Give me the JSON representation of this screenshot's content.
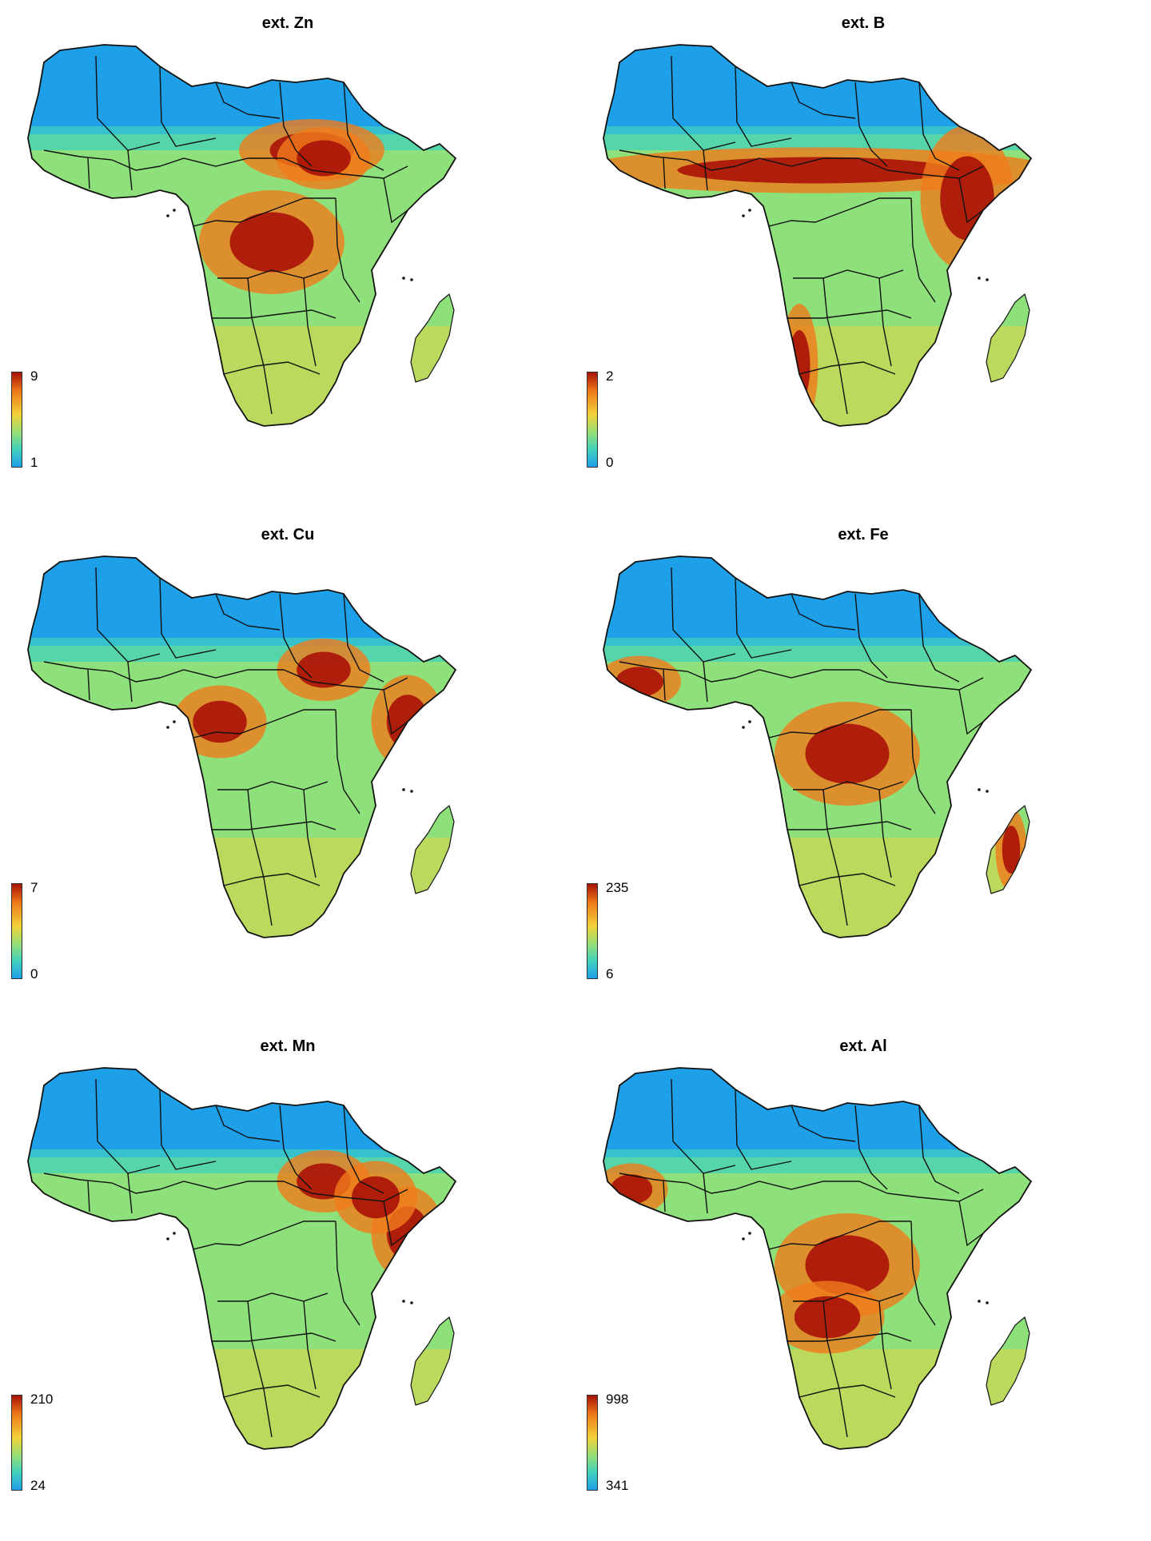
{
  "panels": [
    {
      "title": "ext. Zn",
      "legend_max": "9",
      "legend_min": "1",
      "hotspots": [
        "sahel-east",
        "central-congo",
        "sudan-basin"
      ]
    },
    {
      "title": "ext. B",
      "legend_max": "2",
      "legend_min": "0",
      "hotspots": [
        "sahel-band",
        "horn-of-africa",
        "namib-coast"
      ]
    },
    {
      "title": "ext. Cu",
      "legend_max": "7",
      "legend_min": "0",
      "hotspots": [
        "sudan-basin",
        "cameroon-gabon",
        "somalia-coast"
      ]
    },
    {
      "title": "ext. Fe",
      "legend_max": "235",
      "legend_min": "6",
      "hotspots": [
        "central-congo",
        "west-coast",
        "madagascar-east"
      ]
    },
    {
      "title": "ext. Mn",
      "legend_max": "210",
      "legend_min": "24",
      "hotspots": [
        "sudan-basin",
        "somalia-coast",
        "ethiopian-highlands"
      ]
    },
    {
      "title": "ext. Al",
      "legend_max": "998",
      "legend_min": "341",
      "hotspots": [
        "central-congo",
        "angola-plateau",
        "west-guinea"
      ]
    }
  ],
  "colors": {
    "low": "#1ea0e8",
    "mid_low": "#3fd0c0",
    "mid": "#8ee07a",
    "mid_high": "#f2d23a",
    "high": "#f07a1a",
    "max": "#a81208",
    "border": "#111111"
  }
}
